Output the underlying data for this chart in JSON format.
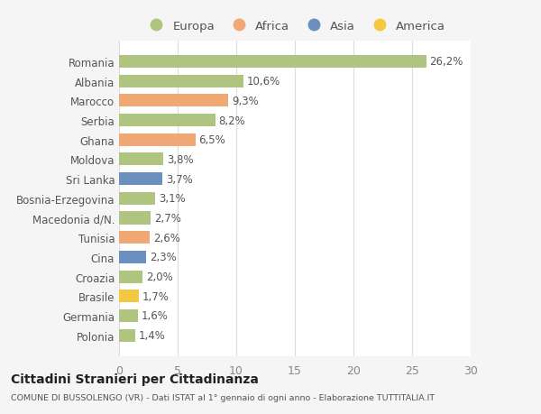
{
  "countries": [
    "Romania",
    "Albania",
    "Marocco",
    "Serbia",
    "Ghana",
    "Moldova",
    "Sri Lanka",
    "Bosnia-Erzegovina",
    "Macedonia d/N.",
    "Tunisia",
    "Cina",
    "Croazia",
    "Brasile",
    "Germania",
    "Polonia"
  ],
  "values": [
    26.2,
    10.6,
    9.3,
    8.2,
    6.5,
    3.8,
    3.7,
    3.1,
    2.7,
    2.6,
    2.3,
    2.0,
    1.7,
    1.6,
    1.4
  ],
  "labels": [
    "26,2%",
    "10,6%",
    "9,3%",
    "8,2%",
    "6,5%",
    "3,8%",
    "3,7%",
    "3,1%",
    "2,7%",
    "2,6%",
    "2,3%",
    "2,0%",
    "1,7%",
    "1,6%",
    "1,4%"
  ],
  "colors": [
    "#aec47f",
    "#aec47f",
    "#f0a875",
    "#aec47f",
    "#f0a875",
    "#aec47f",
    "#6b8fbf",
    "#aec47f",
    "#aec47f",
    "#f0a875",
    "#6b8fbf",
    "#aec47f",
    "#f5c842",
    "#aec47f",
    "#aec47f"
  ],
  "legend_labels": [
    "Europa",
    "Africa",
    "Asia",
    "America"
  ],
  "legend_colors": [
    "#aec47f",
    "#f0a875",
    "#6b8fbf",
    "#f5c842"
  ],
  "xlim": [
    0,
    30
  ],
  "xticks": [
    0,
    5,
    10,
    15,
    20,
    25,
    30
  ],
  "title": "Cittadini Stranieri per Cittadinanza",
  "subtitle": "COMUNE DI BUSSOLENGO (VR) - Dati ISTAT al 1° gennaio di ogni anno - Elaborazione TUTTITALIA.IT",
  "background_color": "#f5f5f5",
  "bar_background": "#ffffff",
  "grid_color": "#dddddd",
  "label_fontsize": 8.5,
  "ytick_fontsize": 8.5,
  "xtick_fontsize": 9
}
